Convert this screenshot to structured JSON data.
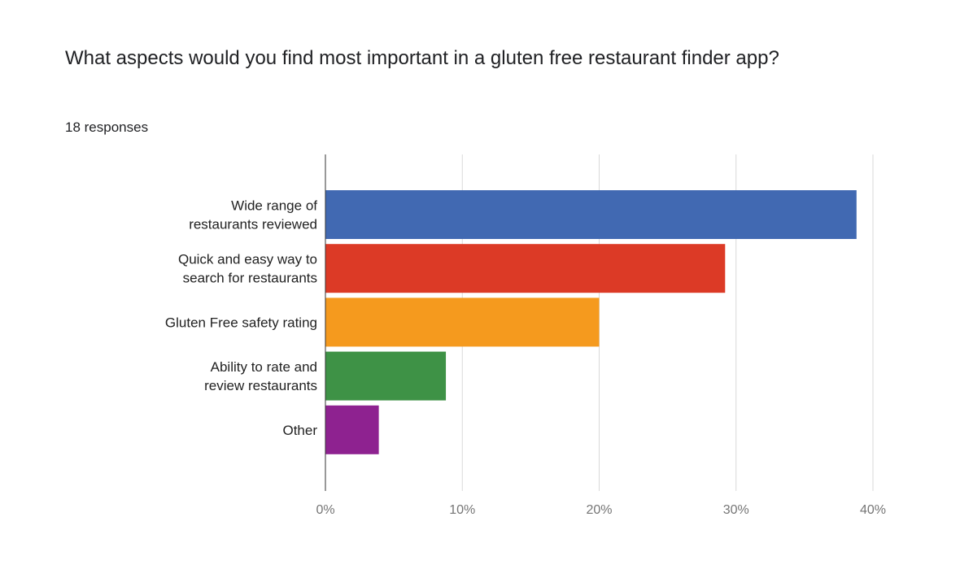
{
  "question": {
    "title": "What aspects would you find most important in a gluten free restaurant finder app?",
    "responses": "18 responses"
  },
  "chart_data": {
    "type": "bar",
    "orientation": "horizontal",
    "title": "What aspects would you find most important in a gluten free restaurant finder app?",
    "subtitle": "18 responses",
    "categories": [
      [
        "Wide range of",
        "restaurants reviewed"
      ],
      [
        "Quick and easy way to",
        "search for restaurants"
      ],
      [
        "Gluten Free safety rating"
      ],
      [
        "Ability to rate and",
        "review restaurants"
      ],
      [
        "Other"
      ]
    ],
    "values": [
      38.8,
      29.2,
      20.0,
      8.8,
      3.9
    ],
    "colors": [
      "#4169b2",
      "#dc3a26",
      "#f59a1e",
      "#3e9246",
      "#8e2290"
    ],
    "xlim": [
      0,
      40
    ],
    "ticks": [
      0,
      10,
      20,
      30,
      40
    ],
    "tick_labels": [
      "0%",
      "10%",
      "20%",
      "30%",
      "40%"
    ],
    "grid": true,
    "legend": "none"
  }
}
